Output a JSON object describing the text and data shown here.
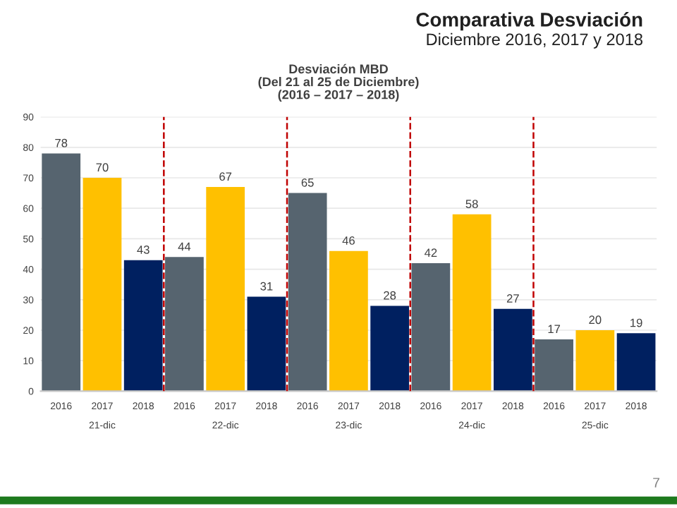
{
  "chart_data": {
    "type": "bar",
    "title": "Comparativa Desviación",
    "subtitle": "Diciembre 2016, 2017 y 2018",
    "annotations": [
      "Desviación MBD\n(Del 21 al 25 de Diciembre)\n(2016 – 2017 – 2018)",
      "7"
    ],
    "categories": [
      "21-dic",
      "22-dic",
      "23-dic",
      "24-dic",
      "25-dic"
    ],
    "series": [
      {
        "name": "2016",
        "color": "#56646f",
        "values": [
          78,
          44,
          65,
          42,
          17
        ]
      },
      {
        "name": "2017",
        "color": "#ffc000",
        "values": [
          70,
          67,
          46,
          58,
          20
        ]
      },
      {
        "name": "2018",
        "color": "#002060",
        "values": [
          43,
          31,
          28,
          27,
          19
        ]
      }
    ],
    "ylim": [
      0,
      90
    ],
    "yticks": [
      0,
      10,
      20,
      30,
      40,
      50,
      60,
      70,
      80,
      90
    ],
    "grid": "y",
    "data_labels": true
  }
}
